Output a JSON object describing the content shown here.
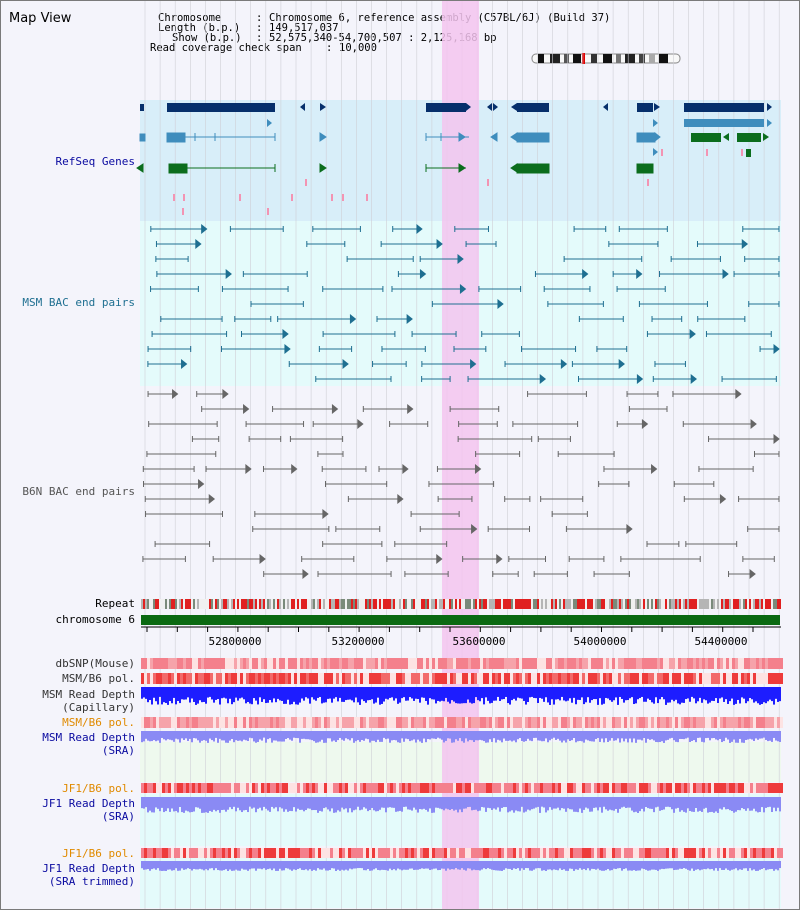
{
  "page_title": "Map View",
  "header": {
    "chromosome_key": "Chromosome",
    "chromosome_value": "Chromosome 6, reference assembly (C57BL/6J) (Build 37)",
    "length_key": "Length (b.p.)",
    "length_value": "149,517,037",
    "show_key": "Show (b.p.)",
    "show_value": "52,575,340-54,700,507 : 2,125,168 bp",
    "coverage_key": "Read coverage check span",
    "coverage_value": "10,000"
  },
  "tracks": {
    "refseq": "RefSeq Genes",
    "msm_bac": "MSM BAC end pairs",
    "b6n_bac": "B6N BAC end pairs",
    "repeat": "Repeat",
    "chromosome": "chromosome 6",
    "dbsnp": "dbSNP(Mouse)",
    "msm_b6_pol": "MSM/B6 pol.",
    "msm_depth_cap_1": "MSM Read Depth",
    "msm_depth_cap_2": "(Capillary)",
    "msm_b6_pol_2": "MSM/B6 pol.",
    "msm_depth_sra_1": "MSM Read Depth",
    "msm_depth_sra_2": "(SRA)",
    "jf1_b6_pol": "JF1/B6 pol.",
    "jf1_depth_sra_1": "JF1 Read Depth",
    "jf1_depth_sra_2": "(SRA)",
    "jf1_b6_pol_2": "JF1/B6 pol.",
    "jf1_depth_trim_1": "JF1 Read Depth",
    "jf1_depth_trim_2": "(SRA trimmed)"
  },
  "axis": {
    "ticks": [
      {
        "value": 52800000,
        "label": "52800000"
      },
      {
        "value": 53200000,
        "label": "53200000"
      },
      {
        "value": 53600000,
        "label": "53600000"
      },
      {
        "value": 54000000,
        "label": "54000000"
      },
      {
        "value": 54400000,
        "label": "54400000"
      }
    ]
  },
  "colors": {
    "refseq_bg": "#d8eef9",
    "refseq_dark": "#062f6b",
    "refseq_mid": "#3f8dbd",
    "refseq_green": "#0b6d1d",
    "msm_bg": "#e4fbfb",
    "msm_feature": "#1f6f91",
    "b6n_bg": "#eeeef7",
    "b6n_feature": "#666666",
    "highlight": "#f3c4ee",
    "chromosome_bar": "#0b6a12",
    "dbsnp": "#f4808c",
    "msm_pol": "#ee3b3b",
    "msm_depth_cap": "#1d1dff",
    "orange_label": "#e08a00",
    "blue_label": "#0a0aa0",
    "sra_depth": "#8a8af4",
    "track_bg_green": "#eef9ee",
    "track_bg_cyan": "#e4fbfb"
  }
}
